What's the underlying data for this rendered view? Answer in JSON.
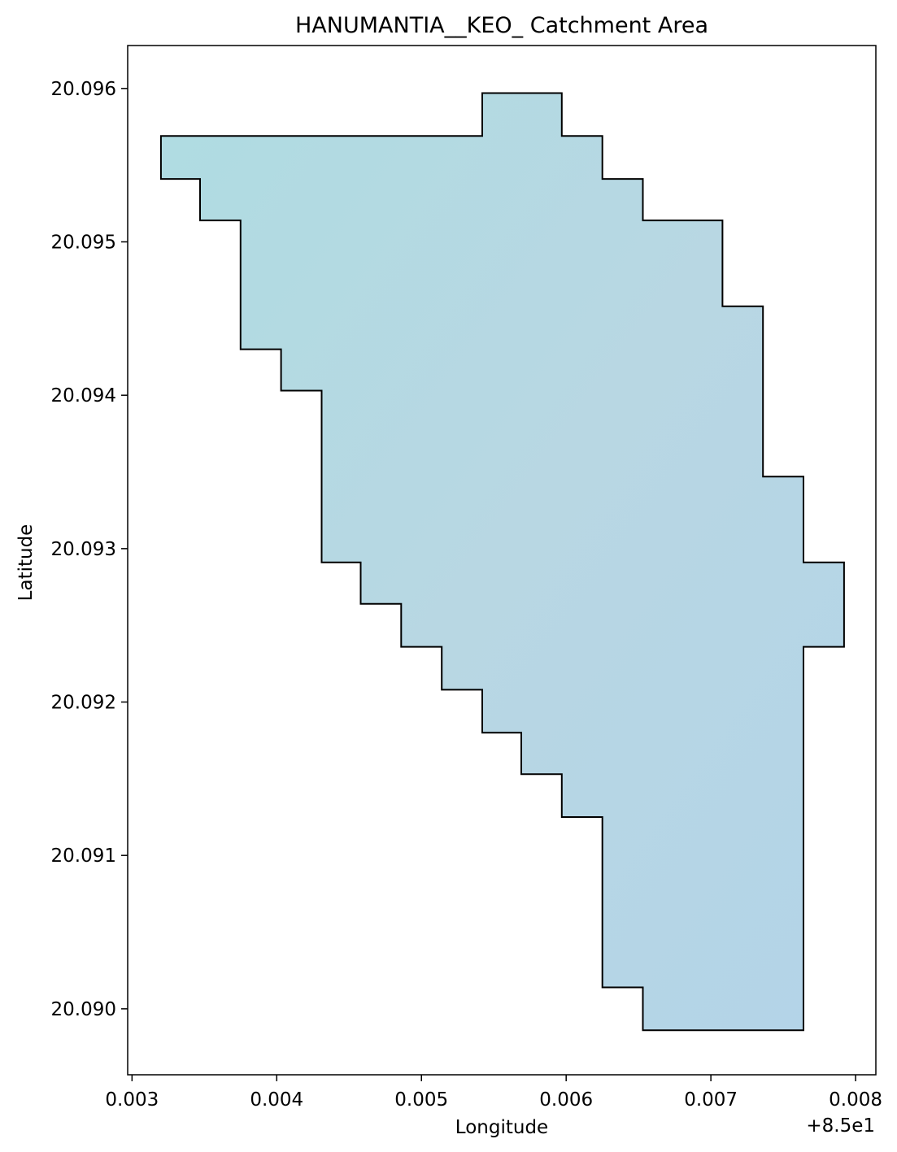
{
  "chart_data": {
    "type": "area",
    "title": "HANUMANTIA__KEO_ Catchment Area",
    "xlabel": "Longitude",
    "ylabel": "Latitude",
    "x_offset_label": "+8.5e1",
    "xlim": [
      0.00297,
      0.00814
    ],
    "ylim": [
      20.08957,
      20.09628
    ],
    "xticks": [
      0.003,
      0.004,
      0.005,
      0.006,
      0.007,
      0.008
    ],
    "xtick_labels": [
      "0.003",
      "0.004",
      "0.005",
      "0.006",
      "0.007",
      "0.008"
    ],
    "yticks": [
      20.09,
      20.091,
      20.092,
      20.093,
      20.094,
      20.095,
      20.096
    ],
    "ytick_labels": [
      "20.090",
      "20.091",
      "20.092",
      "20.093",
      "20.094",
      "20.095",
      "20.096"
    ],
    "grid": false,
    "legend": false,
    "series": [
      {
        "fill_color": "#b6d8e2",
        "edge_color": "#000000",
        "polygon": [
          [
            0.0032,
            20.09569
          ],
          [
            0.00542,
            20.09569
          ],
          [
            0.00542,
            20.09597
          ],
          [
            0.00597,
            20.09597
          ],
          [
            0.00597,
            20.09569
          ],
          [
            0.00625,
            20.09569
          ],
          [
            0.00625,
            20.09541
          ],
          [
            0.00653,
            20.09541
          ],
          [
            0.00653,
            20.09514
          ],
          [
            0.00708,
            20.09514
          ],
          [
            0.00708,
            20.09458
          ],
          [
            0.00736,
            20.09458
          ],
          [
            0.00736,
            20.09347
          ],
          [
            0.00764,
            20.09347
          ],
          [
            0.00764,
            20.09291
          ],
          [
            0.00792,
            20.09291
          ],
          [
            0.00792,
            20.09236
          ],
          [
            0.00764,
            20.09236
          ],
          [
            0.00764,
            20.08986
          ],
          [
            0.00653,
            20.08986
          ],
          [
            0.00653,
            20.09014
          ],
          [
            0.00625,
            20.09014
          ],
          [
            0.00625,
            20.09125
          ],
          [
            0.00597,
            20.09125
          ],
          [
            0.00597,
            20.09153
          ],
          [
            0.00569,
            20.09153
          ],
          [
            0.00569,
            20.0918
          ],
          [
            0.00542,
            20.0918
          ],
          [
            0.00542,
            20.09208
          ],
          [
            0.00514,
            20.09208
          ],
          [
            0.00514,
            20.09236
          ],
          [
            0.00486,
            20.09236
          ],
          [
            0.00486,
            20.09264
          ],
          [
            0.00458,
            20.09264
          ],
          [
            0.00458,
            20.09291
          ],
          [
            0.00431,
            20.09291
          ],
          [
            0.00431,
            20.09403
          ],
          [
            0.00403,
            20.09403
          ],
          [
            0.00403,
            20.0943
          ],
          [
            0.00375,
            20.0943
          ],
          [
            0.00375,
            20.09514
          ],
          [
            0.00347,
            20.09514
          ],
          [
            0.00347,
            20.09541
          ],
          [
            0.0032,
            20.09541
          ]
        ]
      }
    ]
  }
}
